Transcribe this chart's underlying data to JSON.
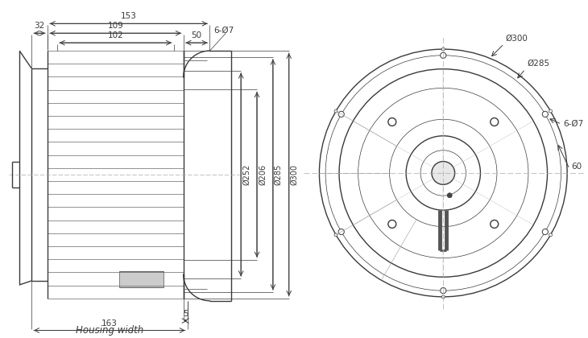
{
  "bg_color": "#ffffff",
  "line_color": "#3a3a3a",
  "dim_color": "#3a3a3a",
  "fig_width": 7.3,
  "fig_height": 4.2,
  "annotations": {
    "dim_153": "153",
    "dim_32": "32",
    "dim_109": "109",
    "dim_50": "50",
    "dim_102": "102",
    "dim_6_phi7_left": "6-Ø7",
    "dim_252": "Ø252",
    "dim_206": "Ø206",
    "dim_285_left": "Ø285",
    "dim_300_left": "Ø300",
    "dim_5": "5",
    "dim_163": "163",
    "housing_width": "Housing width",
    "dim_300_right": "Ø300",
    "dim_285_right": "Ø285",
    "dim_6_phi7_right": "6-Ø7",
    "dim_60": "60"
  }
}
